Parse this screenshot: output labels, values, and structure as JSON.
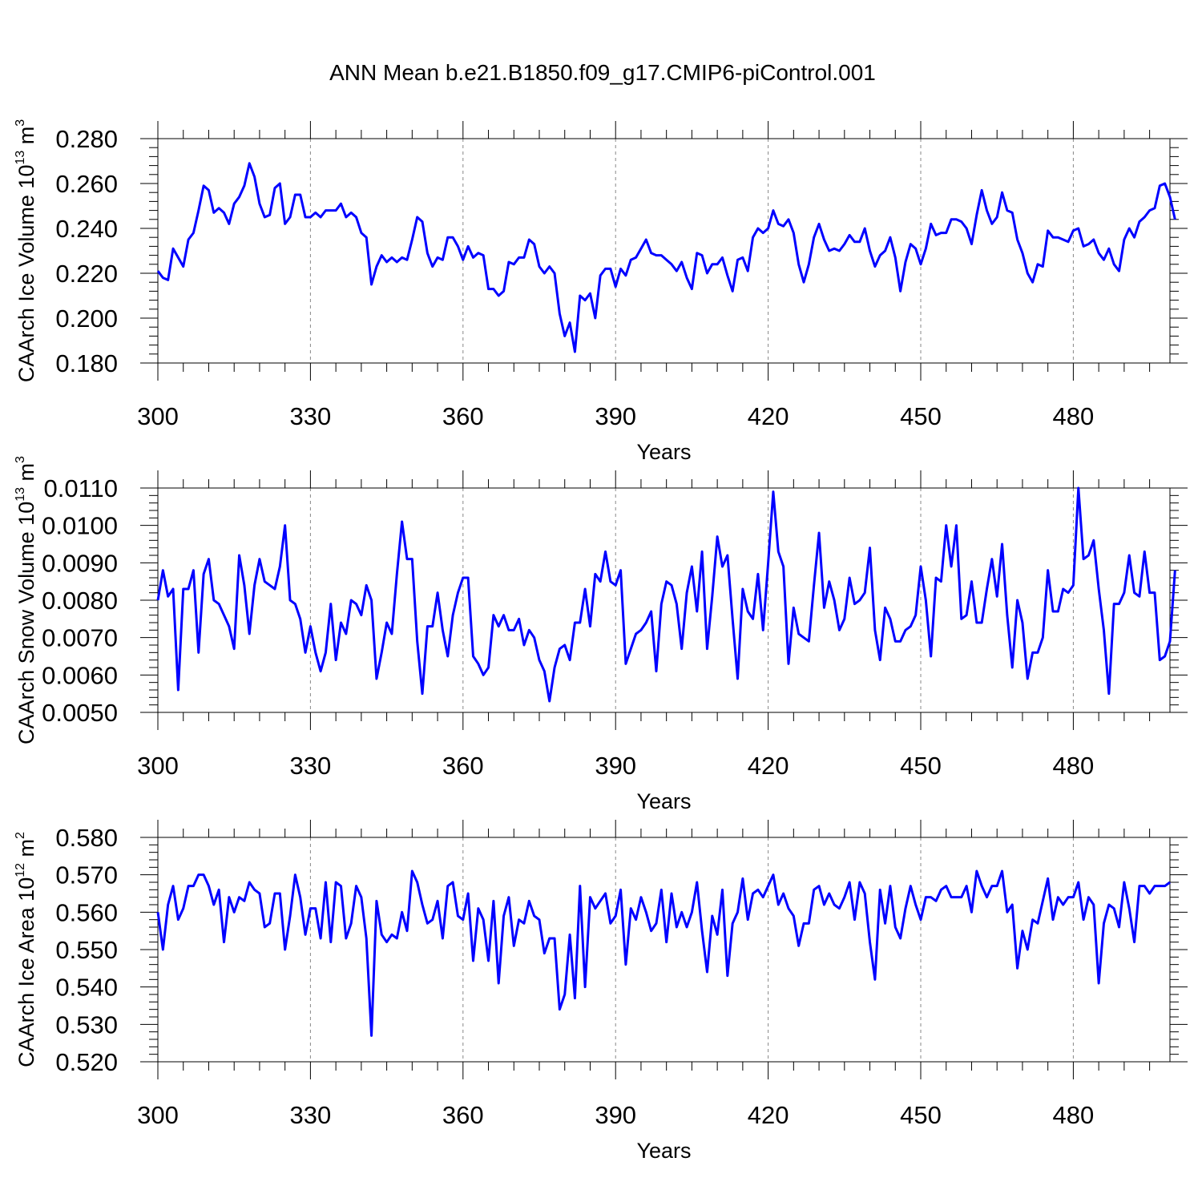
{
  "title": "ANN Mean b.e21.B1850.f09_g17.CMIP6-piControl.001",
  "colors": {
    "line": "#0000ff",
    "axis": "#000000",
    "grid": "#888888"
  },
  "chart_data": [
    {
      "type": "line",
      "xlabel": "Years",
      "ylabel_main": "CAArch Ice Volume 10",
      "ylabel_exp": "13",
      "ylabel_unit": " m",
      "ylabel_unit_exp": "3",
      "xlim": [
        300,
        499
      ],
      "ylim": [
        0.18,
        0.28
      ],
      "x_ticks": [
        300,
        330,
        360,
        390,
        420,
        450,
        480
      ],
      "y_ticks": [
        "0.180",
        "0.200",
        "0.220",
        "0.240",
        "0.260",
        "0.280"
      ],
      "grid": "vertical dashed at major x ticks",
      "series": [
        {
          "x_start": 300,
          "values": [
            0.221,
            0.218,
            0.217,
            0.231,
            0.227,
            0.223,
            0.235,
            0.238,
            0.248,
            0.259,
            0.257,
            0.247,
            0.249,
            0.247,
            0.242,
            0.251,
            0.254,
            0.259,
            0.269,
            0.263,
            0.251,
            0.245,
            0.246,
            0.258,
            0.26,
            0.242,
            0.245,
            0.255,
            0.255,
            0.245,
            0.245,
            0.247,
            0.245,
            0.248,
            0.248,
            0.248,
            0.251,
            0.245,
            0.247,
            0.245,
            0.238,
            0.236,
            0.215,
            0.223,
            0.228,
            0.225,
            0.227,
            0.225,
            0.227,
            0.226,
            0.235,
            0.245,
            0.243,
            0.229,
            0.223,
            0.227,
            0.226,
            0.236,
            0.236,
            0.232,
            0.226,
            0.232,
            0.227,
            0.229,
            0.228,
            0.213,
            0.213,
            0.21,
            0.212,
            0.225,
            0.224,
            0.227,
            0.227,
            0.235,
            0.233,
            0.223,
            0.22,
            0.223,
            0.22,
            0.202,
            0.192,
            0.198,
            0.185,
            0.21,
            0.208,
            0.211,
            0.2,
            0.219,
            0.222,
            0.222,
            0.214,
            0.222,
            0.219,
            0.226,
            0.227,
            0.231,
            0.235,
            0.229,
            0.228,
            0.228,
            0.226,
            0.224,
            0.221,
            0.225,
            0.218,
            0.213,
            0.229,
            0.228,
            0.22,
            0.224,
            0.224,
            0.227,
            0.219,
            0.212,
            0.226,
            0.227,
            0.221,
            0.236,
            0.24,
            0.238,
            0.24,
            0.248,
            0.242,
            0.241,
            0.244,
            0.238,
            0.224,
            0.216,
            0.224,
            0.236,
            0.242,
            0.235,
            0.23,
            0.231,
            0.23,
            0.233,
            0.237,
            0.234,
            0.234,
            0.24,
            0.23,
            0.223,
            0.228,
            0.23,
            0.236,
            0.227,
            0.212,
            0.225,
            0.233,
            0.231,
            0.224,
            0.231,
            0.242,
            0.237,
            0.238,
            0.238,
            0.244,
            0.244,
            0.243,
            0.24,
            0.233,
            0.246,
            0.257,
            0.248,
            0.242,
            0.245,
            0.256,
            0.248,
            0.247,
            0.235,
            0.229,
            0.22,
            0.216,
            0.224,
            0.223,
            0.239,
            0.236,
            0.236,
            0.235,
            0.234,
            0.239,
            0.24,
            0.232,
            0.233,
            0.235,
            0.229,
            0.226,
            0.231,
            0.224,
            0.221,
            0.235,
            0.24,
            0.236,
            0.243,
            0.245,
            0.248,
            0.249,
            0.259,
            0.26,
            0.254,
            0.244
          ]
        }
      ]
    },
    {
      "type": "line",
      "xlabel": "Years",
      "ylabel_main": "CAArch Snow Volume 10",
      "ylabel_exp": "13",
      "ylabel_unit": " m",
      "ylabel_unit_exp": "3",
      "xlim": [
        300,
        499
      ],
      "ylim": [
        0.005,
        0.011
      ],
      "x_ticks": [
        300,
        330,
        360,
        390,
        420,
        450,
        480
      ],
      "y_ticks": [
        "0.0050",
        "0.0060",
        "0.0070",
        "0.0080",
        "0.0090",
        "0.0100",
        "0.0110"
      ],
      "grid": "vertical dashed at major x ticks",
      "series": [
        {
          "x_start": 300,
          "values": [
            0.008,
            0.0088,
            0.0081,
            0.0083,
            0.0056,
            0.0083,
            0.0083,
            0.0088,
            0.0066,
            0.0087,
            0.0091,
            0.008,
            0.0079,
            0.0076,
            0.0073,
            0.0067,
            0.0092,
            0.0084,
            0.0071,
            0.0084,
            0.0091,
            0.0085,
            0.0084,
            0.0083,
            0.0089,
            0.01,
            0.008,
            0.0079,
            0.0075,
            0.0066,
            0.0073,
            0.0066,
            0.0061,
            0.0066,
            0.0079,
            0.0064,
            0.0074,
            0.0071,
            0.008,
            0.0079,
            0.0076,
            0.0084,
            0.008,
            0.0059,
            0.0066,
            0.0074,
            0.0071,
            0.0087,
            0.0101,
            0.0091,
            0.0091,
            0.0069,
            0.0055,
            0.0073,
            0.0073,
            0.0082,
            0.0072,
            0.0065,
            0.0076,
            0.0082,
            0.0086,
            0.0086,
            0.0065,
            0.0063,
            0.006,
            0.0062,
            0.0076,
            0.0073,
            0.0076,
            0.0072,
            0.0072,
            0.0075,
            0.0068,
            0.0072,
            0.007,
            0.0064,
            0.0061,
            0.0053,
            0.0062,
            0.0067,
            0.0068,
            0.0064,
            0.0074,
            0.0074,
            0.0083,
            0.0073,
            0.0087,
            0.0085,
            0.0093,
            0.0085,
            0.0084,
            0.0088,
            0.0063,
            0.0067,
            0.0071,
            0.0072,
            0.0074,
            0.0077,
            0.0061,
            0.0079,
            0.0085,
            0.0084,
            0.0079,
            0.0067,
            0.0082,
            0.0089,
            0.0077,
            0.0093,
            0.0067,
            0.0081,
            0.0097,
            0.0089,
            0.0092,
            0.0075,
            0.0059,
            0.0083,
            0.0077,
            0.0075,
            0.0087,
            0.0072,
            0.009,
            0.0109,
            0.0093,
            0.0089,
            0.0063,
            0.0078,
            0.0071,
            0.007,
            0.0069,
            0.0084,
            0.0098,
            0.0078,
            0.0085,
            0.008,
            0.0072,
            0.0075,
            0.0086,
            0.0079,
            0.008,
            0.0082,
            0.0094,
            0.0072,
            0.0064,
            0.0078,
            0.0075,
            0.0069,
            0.0069,
            0.0072,
            0.0073,
            0.0076,
            0.0089,
            0.008,
            0.0065,
            0.0086,
            0.0085,
            0.01,
            0.0089,
            0.01,
            0.0075,
            0.0076,
            0.0085,
            0.0074,
            0.0074,
            0.0083,
            0.0091,
            0.0081,
            0.0095,
            0.0076,
            0.0062,
            0.008,
            0.0074,
            0.0059,
            0.0066,
            0.0066,
            0.007,
            0.0088,
            0.0077,
            0.0077,
            0.0083,
            0.0082,
            0.0084,
            0.011,
            0.0091,
            0.0092,
            0.0096,
            0.0083,
            0.0072,
            0.0055,
            0.0079,
            0.0079,
            0.0082,
            0.0092,
            0.0082,
            0.0081,
            0.0093,
            0.0082,
            0.0082,
            0.0064,
            0.0065,
            0.0069,
            0.0088
          ]
        }
      ]
    },
    {
      "type": "line",
      "xlabel": "Years",
      "ylabel_main": "CAArch Ice Area 10",
      "ylabel_exp": "12",
      "ylabel_unit": " m",
      "ylabel_unit_exp": "2",
      "xlim": [
        300,
        499
      ],
      "ylim": [
        0.52,
        0.58
      ],
      "x_ticks": [
        300,
        330,
        360,
        390,
        420,
        450,
        480
      ],
      "y_ticks": [
        "0.520",
        "0.530",
        "0.540",
        "0.550",
        "0.560",
        "0.570",
        "0.580"
      ],
      "grid": "vertical dashed at major x ticks",
      "series": [
        {
          "x_start": 300,
          "values": [
            0.56,
            0.55,
            0.562,
            0.567,
            0.558,
            0.561,
            0.567,
            0.567,
            0.57,
            0.57,
            0.567,
            0.562,
            0.566,
            0.552,
            0.564,
            0.56,
            0.564,
            0.563,
            0.568,
            0.566,
            0.565,
            0.556,
            0.557,
            0.565,
            0.565,
            0.55,
            0.559,
            0.57,
            0.564,
            0.554,
            0.561,
            0.561,
            0.553,
            0.568,
            0.552,
            0.568,
            0.567,
            0.553,
            0.557,
            0.567,
            0.564,
            0.553,
            0.527,
            0.563,
            0.554,
            0.552,
            0.554,
            0.553,
            0.56,
            0.555,
            0.571,
            0.568,
            0.562,
            0.557,
            0.558,
            0.563,
            0.553,
            0.567,
            0.568,
            0.559,
            0.558,
            0.565,
            0.547,
            0.561,
            0.558,
            0.547,
            0.563,
            0.541,
            0.559,
            0.564,
            0.551,
            0.558,
            0.557,
            0.563,
            0.559,
            0.558,
            0.549,
            0.553,
            0.553,
            0.534,
            0.538,
            0.554,
            0.537,
            0.567,
            0.54,
            0.564,
            0.561,
            0.563,
            0.565,
            0.557,
            0.559,
            0.566,
            0.546,
            0.561,
            0.558,
            0.564,
            0.56,
            0.555,
            0.557,
            0.566,
            0.552,
            0.565,
            0.556,
            0.56,
            0.556,
            0.56,
            0.568,
            0.555,
            0.544,
            0.559,
            0.554,
            0.566,
            0.543,
            0.557,
            0.56,
            0.569,
            0.558,
            0.565,
            0.566,
            0.564,
            0.567,
            0.57,
            0.562,
            0.565,
            0.561,
            0.559,
            0.551,
            0.557,
            0.557,
            0.566,
            0.567,
            0.562,
            0.565,
            0.562,
            0.561,
            0.564,
            0.568,
            0.558,
            0.568,
            0.565,
            0.552,
            0.542,
            0.566,
            0.557,
            0.567,
            0.556,
            0.553,
            0.561,
            0.567,
            0.562,
            0.558,
            0.564,
            0.564,
            0.563,
            0.566,
            0.567,
            0.564,
            0.564,
            0.564,
            0.567,
            0.56,
            0.571,
            0.567,
            0.564,
            0.567,
            0.567,
            0.571,
            0.56,
            0.562,
            0.545,
            0.555,
            0.55,
            0.558,
            0.557,
            0.563,
            0.569,
            0.558,
            0.564,
            0.562,
            0.564,
            0.564,
            0.568,
            0.558,
            0.564,
            0.562,
            0.541,
            0.557,
            0.562,
            0.561,
            0.556,
            0.568,
            0.561,
            0.552,
            0.567,
            0.567,
            0.565,
            0.567,
            0.567,
            0.567,
            0.568
          ]
        }
      ]
    }
  ]
}
